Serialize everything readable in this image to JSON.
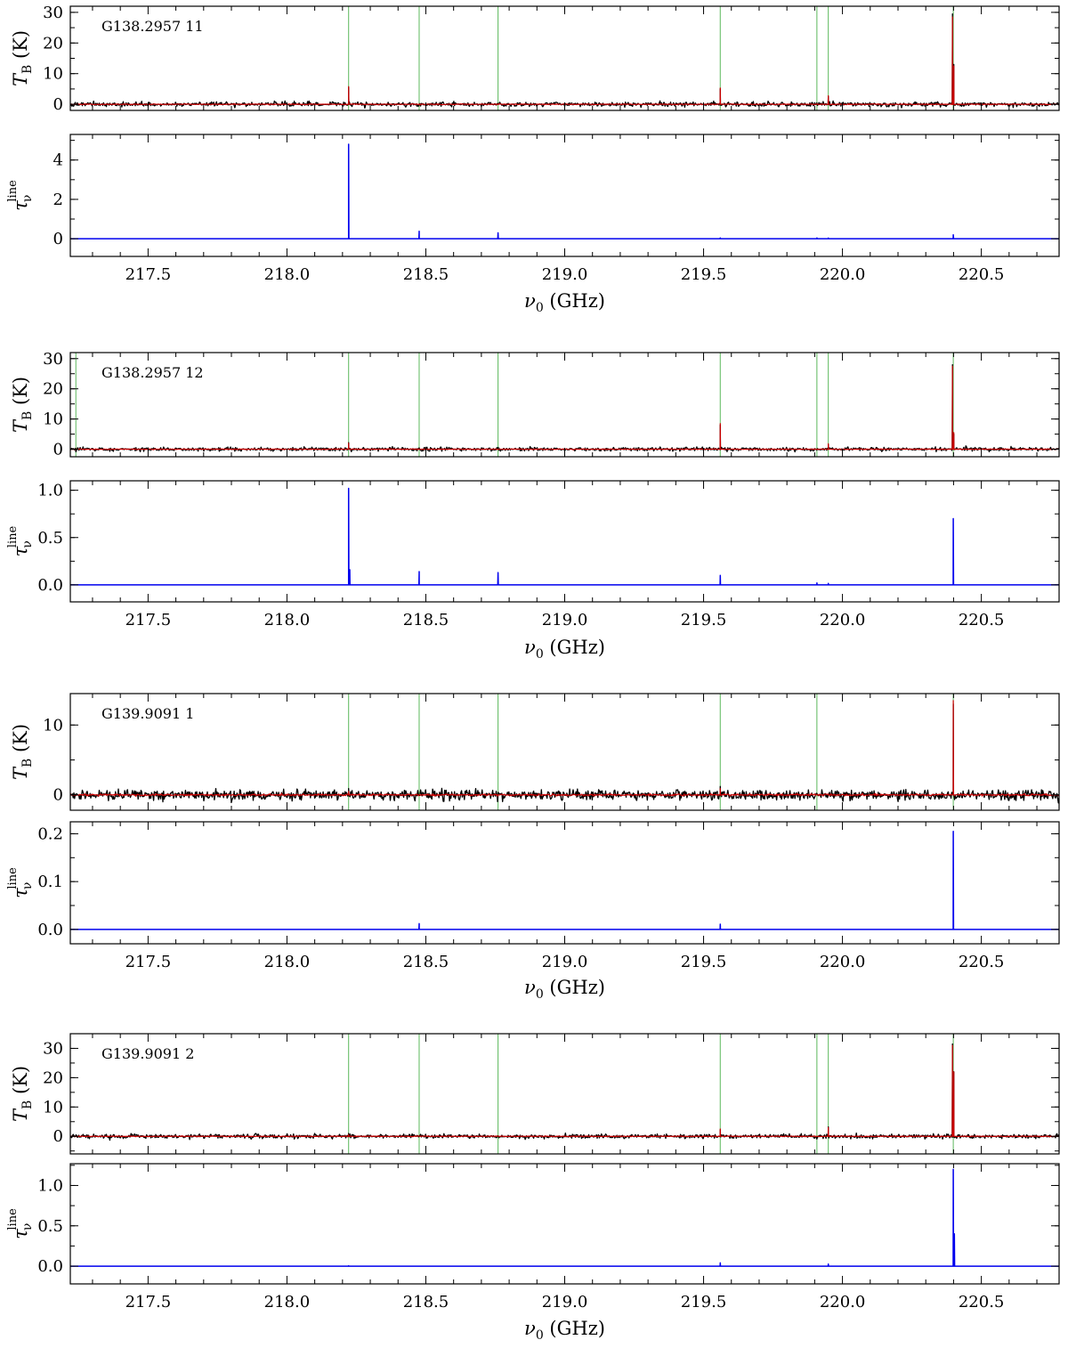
{
  "figure": {
    "x_axis_label_main": "ν",
    "x_axis_label_sub": "0",
    "x_axis_label_unit": "(GHz)",
    "tb_label_main": "T",
    "tb_label_sub": "B",
    "tb_label_unit": "(K)",
    "tau_label_main": "τ",
    "tau_label_sub": "ν",
    "tau_label_sup": "line"
  },
  "chart_data": [
    {
      "type": "line",
      "title": "G138.2957 11",
      "xlim": [
        217.22,
        220.78
      ],
      "x_ticks": [
        "217.5",
        "218.0",
        "218.5",
        "219.0",
        "219.5",
        "220.0",
        "220.5"
      ],
      "marker_lines_ghz": [
        218.222,
        218.476,
        218.76,
        219.56,
        219.908,
        219.949,
        220.399
      ],
      "top": {
        "ylabel": "T_B (K)",
        "ylim": [
          -2,
          32
        ],
        "y_ticks": [
          0,
          10,
          20,
          30
        ],
        "noise_rms_k": 0.35,
        "series": [
          {
            "name": "observed",
            "color": "#000000",
            "peaks": [
              {
                "x": 218.222,
                "y": 5.5
              },
              {
                "x": 219.56,
                "y": 5.0
              },
              {
                "x": 219.949,
                "y": 2.5
              },
              {
                "x": 220.396,
                "y": 29.5
              },
              {
                "x": 220.401,
                "y": 13
              }
            ]
          },
          {
            "name": "model",
            "color": "#cc0000",
            "peaks": [
              {
                "x": 218.222,
                "y": 5.8
              },
              {
                "x": 219.56,
                "y": 5.3
              },
              {
                "x": 219.949,
                "y": 2.8
              },
              {
                "x": 220.396,
                "y": 28.5
              },
              {
                "x": 220.401,
                "y": 12.5
              }
            ]
          }
        ]
      },
      "bottom": {
        "ylabel": "tau_nu^line",
        "ylim": [
          -0.9,
          5.3
        ],
        "y_ticks": [
          0,
          2,
          4
        ],
        "series": [
          {
            "name": "tau",
            "color": "#0000ee",
            "peaks": [
              {
                "x": 218.222,
                "y": 4.8
              },
              {
                "x": 218.476,
                "y": 0.38
              },
              {
                "x": 218.76,
                "y": 0.3
              },
              {
                "x": 219.56,
                "y": 0.04
              },
              {
                "x": 219.908,
                "y": 0.04
              },
              {
                "x": 219.949,
                "y": 0.03
              },
              {
                "x": 220.399,
                "y": 0.2
              }
            ]
          }
        ]
      }
    },
    {
      "type": "line",
      "title": "G138.2957 12",
      "xlim": [
        217.22,
        220.78
      ],
      "x_ticks": [
        "217.5",
        "218.0",
        "218.5",
        "219.0",
        "219.5",
        "220.0",
        "220.5"
      ],
      "marker_lines_ghz": [
        217.24,
        218.222,
        218.476,
        218.76,
        219.56,
        219.908,
        219.949,
        220.399
      ],
      "top": {
        "ylabel": "T_B (K)",
        "ylim": [
          -2.5,
          32
        ],
        "y_ticks": [
          0,
          10,
          20,
          30
        ],
        "noise_rms_k": 0.3,
        "series": [
          {
            "name": "observed",
            "color": "#000000",
            "peaks": [
              {
                "x": 218.222,
                "y": 2.2
              },
              {
                "x": 219.56,
                "y": 8.0
              },
              {
                "x": 219.949,
                "y": 1.5
              },
              {
                "x": 220.396,
                "y": 28
              },
              {
                "x": 220.401,
                "y": 5
              }
            ]
          },
          {
            "name": "model",
            "color": "#cc0000",
            "peaks": [
              {
                "x": 218.222,
                "y": 2.0
              },
              {
                "x": 219.56,
                "y": 8.5
              },
              {
                "x": 219.949,
                "y": 1.8
              },
              {
                "x": 220.396,
                "y": 27.5
              },
              {
                "x": 220.401,
                "y": 5.5
              }
            ]
          }
        ]
      },
      "bottom": {
        "ylabel": "tau_nu^line",
        "ylim": [
          -0.18,
          1.1
        ],
        "y_ticks": [
          0.0,
          0.5,
          1.0
        ],
        "series": [
          {
            "name": "tau",
            "color": "#0000ee",
            "peaks": [
              {
                "x": 218.222,
                "y": 1.02
              },
              {
                "x": 218.226,
                "y": 0.16
              },
              {
                "x": 218.476,
                "y": 0.14
              },
              {
                "x": 218.76,
                "y": 0.13
              },
              {
                "x": 219.56,
                "y": 0.1
              },
              {
                "x": 219.908,
                "y": 0.02
              },
              {
                "x": 219.949,
                "y": 0.015
              },
              {
                "x": 220.399,
                "y": 0.7
              }
            ]
          }
        ]
      }
    },
    {
      "type": "line",
      "title": "G139.9091 1",
      "xlim": [
        217.22,
        220.78
      ],
      "x_ticks": [
        "217.5",
        "218.0",
        "218.5",
        "219.0",
        "219.5",
        "220.0",
        "220.5"
      ],
      "marker_lines_ghz": [
        218.222,
        218.476,
        218.76,
        219.56,
        219.908,
        220.399
      ],
      "top": {
        "ylabel": "T_B (K)",
        "ylim": [
          -2.2,
          14.5
        ],
        "y_ticks": [
          0,
          10
        ],
        "noise_rms_k": 0.35,
        "series": [
          {
            "name": "observed",
            "color": "#000000",
            "peaks": [
              {
                "x": 218.222,
                "y": 0.9
              },
              {
                "x": 219.56,
                "y": 1.2
              },
              {
                "x": 220.399,
                "y": 13
              }
            ]
          },
          {
            "name": "model",
            "color": "#cc0000",
            "peaks": [
              {
                "x": 218.222,
                "y": 0.5
              },
              {
                "x": 219.56,
                "y": 0.9
              },
              {
                "x": 220.399,
                "y": 13.5
              }
            ]
          }
        ]
      },
      "bottom": {
        "ylabel": "tau_nu^line",
        "ylim": [
          -0.03,
          0.225
        ],
        "y_ticks": [
          0.0,
          0.1,
          0.2
        ],
        "series": [
          {
            "name": "tau",
            "color": "#0000ee",
            "peaks": [
              {
                "x": 218.476,
                "y": 0.012
              },
              {
                "x": 219.56,
                "y": 0.011
              },
              {
                "x": 220.399,
                "y": 0.205
              }
            ]
          }
        ]
      }
    },
    {
      "type": "line",
      "title": "G139.9091 2",
      "xlim": [
        217.22,
        220.78
      ],
      "x_ticks": [
        "217.5",
        "218.0",
        "218.5",
        "219.0",
        "219.5",
        "220.0",
        "220.5"
      ],
      "marker_lines_ghz": [
        218.222,
        218.476,
        218.76,
        219.56,
        219.908,
        219.949,
        220.399
      ],
      "top": {
        "ylabel": "T_B (K)",
        "ylim": [
          -6,
          35
        ],
        "y_ticks": [
          0,
          10,
          20,
          30
        ],
        "noise_rms_k": 0.35,
        "series": [
          {
            "name": "observed",
            "color": "#000000",
            "peaks": [
              {
                "x": 218.222,
                "y": 1.0
              },
              {
                "x": 219.56,
                "y": 2.2
              },
              {
                "x": 219.949,
                "y": 3.2
              },
              {
                "x": 220.396,
                "y": 31.5
              },
              {
                "x": 220.401,
                "y": 22
              }
            ]
          },
          {
            "name": "model",
            "color": "#cc0000",
            "peaks": [
              {
                "x": 218.222,
                "y": 0.6
              },
              {
                "x": 219.56,
                "y": 2.5
              },
              {
                "x": 219.949,
                "y": 3.0
              },
              {
                "x": 220.396,
                "y": 31
              },
              {
                "x": 220.401,
                "y": 22
              }
            ]
          }
        ]
      },
      "bottom": {
        "ylabel": "tau_nu^line",
        "ylim": [
          -0.22,
          1.27
        ],
        "y_ticks": [
          0.0,
          0.5,
          1.0
        ],
        "series": [
          {
            "name": "tau",
            "color": "#0000ee",
            "peaks": [
              {
                "x": 218.222,
                "y": 0.005
              },
              {
                "x": 219.56,
                "y": 0.04
              },
              {
                "x": 219.949,
                "y": 0.025
              },
              {
                "x": 220.399,
                "y": 1.2
              },
              {
                "x": 220.403,
                "y": 0.4
              }
            ]
          }
        ]
      }
    }
  ]
}
